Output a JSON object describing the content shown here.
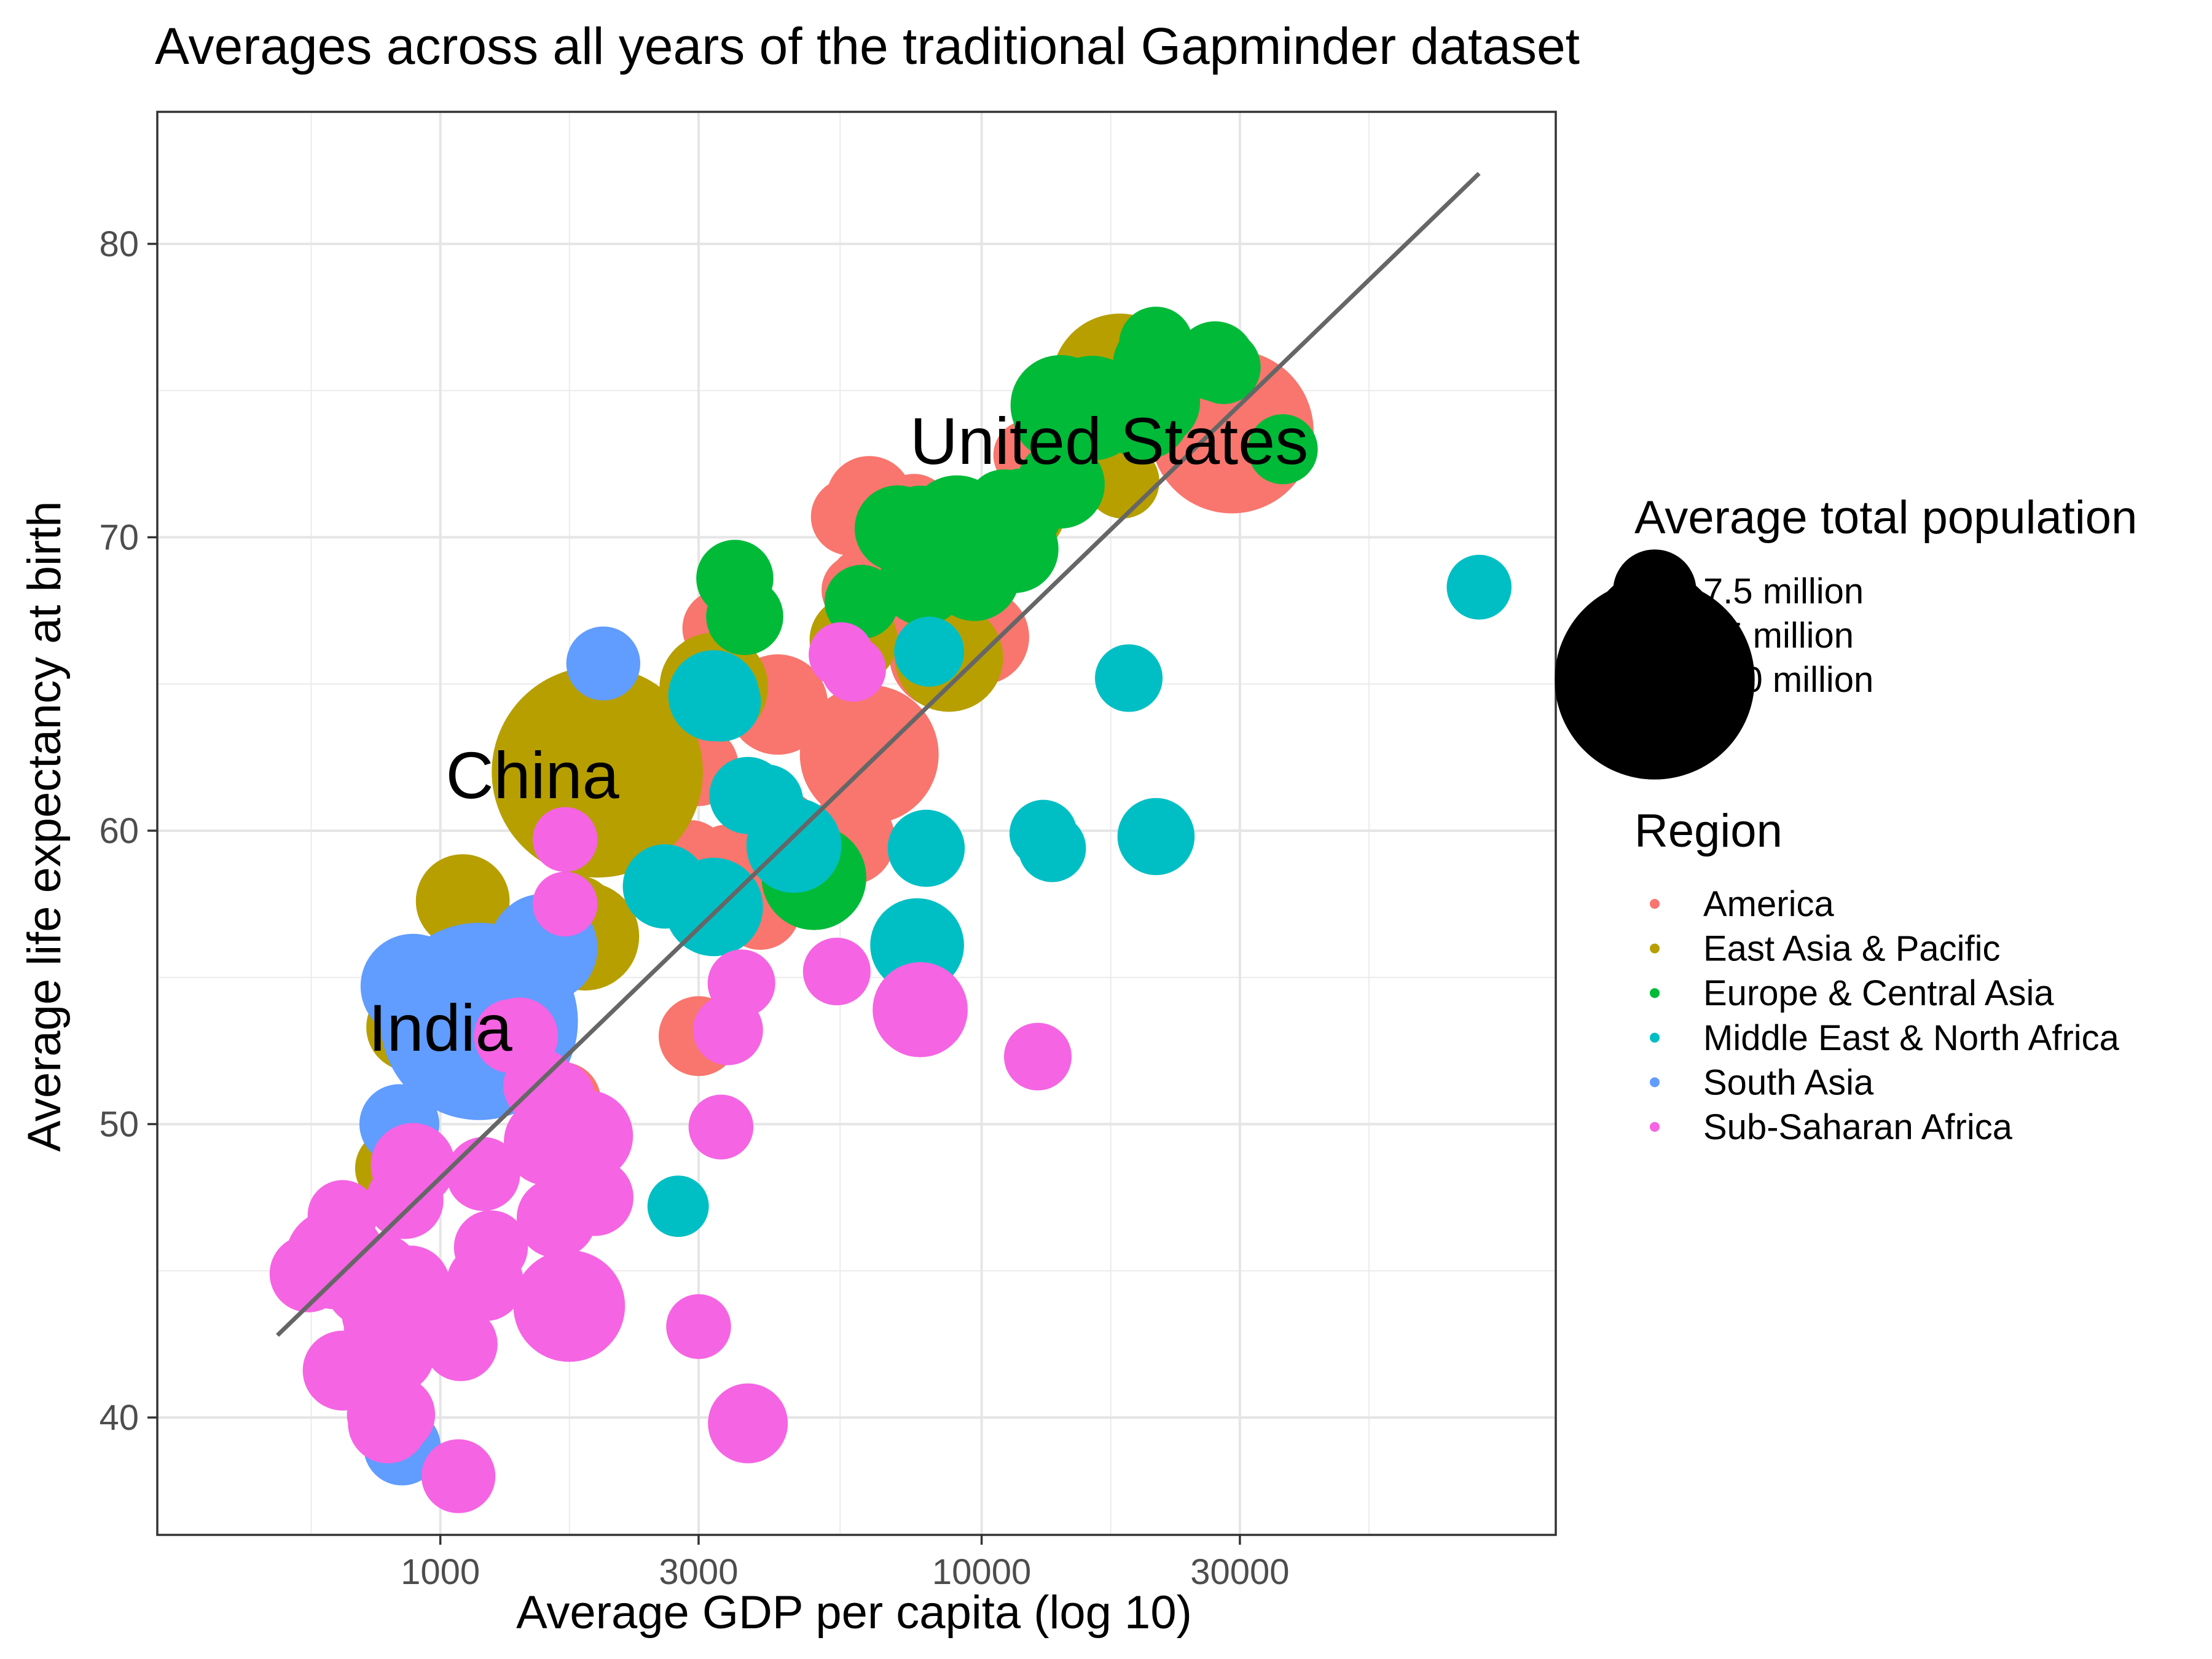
{
  "chart_data": {
    "type": "scatter",
    "title": "Averages across all years of the traditional Gapminder dataset",
    "xlabel": "Average GDP per capita (log 10)",
    "ylabel": "Average life expectancy at birth",
    "x_scale": "log10",
    "xlim": [
      300,
      115000
    ],
    "ylim": [
      36,
      84.5
    ],
    "x_ticks": [
      1000,
      3000,
      10000,
      30000
    ],
    "x_tick_labels": [
      "1000",
      "3000",
      "10000",
      "30000"
    ],
    "y_ticks": [
      40,
      50,
      60,
      70,
      80
    ],
    "y_tick_labels": [
      "40",
      "50",
      "60",
      "70",
      "80"
    ],
    "grid": true,
    "size_legend": {
      "title": "Average total population",
      "entries": [
        {
          "label": "7.5 million",
          "value": 7500000
        },
        {
          "label": "75 million",
          "value": 75000000
        },
        {
          "label": "750 million",
          "value": 750000000
        }
      ]
    },
    "color_legend": {
      "title": "Region",
      "placement": "right",
      "entries": [
        {
          "name": "America",
          "color": "#F8766D"
        },
        {
          "name": "East Asia & Pacific",
          "color": "#B79F00"
        },
        {
          "name": "Europe & Central Asia",
          "color": "#00BA38"
        },
        {
          "name": "Middle East & North Africa",
          "color": "#00BFC4"
        },
        {
          "name": "South Asia",
          "color": "#619CFF"
        },
        {
          "name": "Sub-Saharan Africa",
          "color": "#F564E3"
        }
      ]
    },
    "trend_line": {
      "x": [
        500,
        83000
      ],
      "y": [
        42.8,
        82.4
      ],
      "color": "#666666"
    },
    "labels": [
      {
        "text": "United States",
        "x": 17200,
        "y": 73.3
      },
      {
        "text": "China",
        "x": 1480,
        "y": 61.9
      },
      {
        "text": "India",
        "x": 1000,
        "y": 53.3
      }
    ],
    "series": [
      {
        "name": "America",
        "points": [
          [
            29000,
            73.6,
            260000000
          ],
          [
            23000,
            75.2,
            25000000
          ],
          [
            18000,
            75.3,
            8000000
          ],
          [
            20000,
            74.5,
            9000000
          ],
          [
            17000,
            74.4,
            7000000
          ],
          [
            12200,
            72.8,
            3000000
          ],
          [
            6200,
            71.3,
            9000000
          ],
          [
            5700,
            70.7,
            5000000
          ],
          [
            7500,
            70.9,
            4000000
          ],
          [
            9700,
            69.3,
            25000000
          ],
          [
            6800,
            67.9,
            6000000
          ],
          [
            6100,
            68.4,
            4000000
          ],
          [
            5900,
            68.2,
            3500000
          ],
          [
            8000,
            66.2,
            8000000
          ],
          [
            10000,
            66.6,
            15000000
          ],
          [
            8500,
            66.0,
            30000000
          ],
          [
            6200,
            62.6,
            110000000
          ],
          [
            5900,
            63.3,
            6000000
          ],
          [
            4200,
            64.3,
            20000000
          ],
          [
            3300,
            66.9,
            5000000
          ],
          [
            3000,
            62.2,
            6000000
          ],
          [
            5700,
            59.7,
            12000000
          ],
          [
            4300,
            60.1,
            4000000
          ],
          [
            3400,
            58.9,
            5000000
          ],
          [
            2900,
            59.1,
            4000000
          ],
          [
            3900,
            57.3,
            6000000
          ],
          [
            3000,
            53.0,
            6000000
          ],
          [
            1680,
            50.8,
            5000000
          ]
        ]
      },
      {
        "name": "East Asia & Pacific",
        "points": [
          [
            18000,
            75.3,
            100000000
          ],
          [
            20200,
            75.0,
            5000000
          ],
          [
            18200,
            71.9,
            4000000
          ],
          [
            12100,
            70.8,
            5000000
          ],
          [
            8700,
            65.9,
            30000000
          ],
          [
            5800,
            66.5,
            10000000
          ],
          [
            3200,
            64.9,
            30000000
          ],
          [
            2300,
            63.5,
            6000000
          ],
          [
            2400,
            62.7,
            14000000
          ],
          [
            1950,
            62.0,
            1000000000
          ],
          [
            1100,
            57.6,
            14000000
          ],
          [
            1850,
            56.4,
            30000000
          ],
          [
            1800,
            57.2,
            4000000
          ],
          [
            880,
            53.3,
            10000000
          ],
          [
            1270,
            51.9,
            5000000
          ],
          [
            820,
            48.5,
            5000000
          ]
        ]
      },
      {
        "name": "Europe & Central Asia",
        "points": [
          [
            21000,
            76.6,
            4000000
          ],
          [
            21000,
            76.3,
            4000000
          ],
          [
            27000,
            76.0,
            6000000
          ],
          [
            28000,
            75.8,
            4000000
          ],
          [
            21000,
            75.9,
            9000000
          ],
          [
            20000,
            74.8,
            14000000
          ],
          [
            21000,
            74.6,
            10000000
          ],
          [
            20000,
            74.2,
            12000000
          ],
          [
            16000,
            74.4,
            25000000
          ],
          [
            14000,
            74.5,
            20000000
          ],
          [
            13700,
            74.1,
            8000000
          ],
          [
            14100,
            74.0,
            6000000
          ],
          [
            36000,
            73.0,
            3000000
          ],
          [
            14500,
            73.5,
            5000000
          ],
          [
            14000,
            71.8,
            10000000
          ],
          [
            9000,
            70.4,
            20000000
          ],
          [
            9700,
            70.4,
            4000000
          ],
          [
            11800,
            70.9,
            8000000
          ],
          [
            11000,
            71.0,
            5000000
          ],
          [
            7700,
            70.5,
            4000000
          ],
          [
            7000,
            70.3,
            9000000
          ],
          [
            11500,
            69.6,
            10000000
          ],
          [
            9700,
            68.7,
            12000000
          ],
          [
            7800,
            68.5,
            10000000
          ],
          [
            6000,
            67.8,
            4000000
          ],
          [
            3500,
            68.6,
            5000000
          ],
          [
            3650,
            67.3,
            5000000
          ],
          [
            4900,
            58.4,
            25000000
          ]
        ]
      },
      {
        "name": "Middle East & North Africa",
        "points": [
          [
            83000,
            68.3,
            2000000
          ],
          [
            18700,
            65.2,
            2500000
          ],
          [
            8000,
            66.1,
            3000000
          ],
          [
            3200,
            64.6,
            12000000
          ],
          [
            3300,
            64.4,
            6000000
          ],
          [
            3700,
            61.2,
            5000000
          ],
          [
            4000,
            61.0,
            4000000
          ],
          [
            4500,
            59.5,
            15000000
          ],
          [
            7900,
            59.4,
            5000000
          ],
          [
            13000,
            59.9,
            2500000
          ],
          [
            13500,
            59.4,
            2500000
          ],
          [
            21000,
            59.8,
            5000000
          ],
          [
            2600,
            58.1,
            8000000
          ],
          [
            3200,
            57.4,
            18000000
          ],
          [
            7600,
            56.1,
            14000000
          ],
          [
            1700,
            49.3,
            6000000
          ],
          [
            2750,
            47.2,
            1500000
          ]
        ]
      },
      {
        "name": "South Asia",
        "points": [
          [
            2000,
            65.7,
            4000000
          ],
          [
            1550,
            56.0,
            30000000
          ],
          [
            890,
            54.7,
            25000000
          ],
          [
            1180,
            53.5,
            700000000
          ],
          [
            1170,
            52.9,
            30000000
          ],
          [
            840,
            50.0,
            6000000
          ],
          [
            850,
            39.0,
            5000000
          ]
        ]
      },
      {
        "name": "Sub-Saharan Africa",
        "points": [
          [
            5500,
            66.0,
            2000000
          ],
          [
            5800,
            65.5,
            2000000
          ],
          [
            1700,
            59.7,
            2000000
          ],
          [
            1700,
            57.5,
            2000000
          ],
          [
            5400,
            55.2,
            2500000
          ],
          [
            3600,
            54.8,
            2500000
          ],
          [
            7700,
            53.9,
            15000000
          ],
          [
            3400,
            53.2,
            3000000
          ],
          [
            1400,
            53.0,
            5000000
          ],
          [
            1350,
            53.0,
            4000000
          ],
          [
            1530,
            51.3,
            4000000
          ],
          [
            12700,
            52.3,
            2500000
          ],
          [
            1650,
            50.9,
            4000000
          ],
          [
            3300,
            49.9,
            2000000
          ],
          [
            1580,
            49.4,
            10000000
          ],
          [
            1870,
            49.6,
            12000000
          ],
          [
            890,
            48.6,
            8000000
          ],
          [
            1200,
            48.3,
            4000000
          ],
          [
            1780,
            47.6,
            5000000
          ],
          [
            1820,
            47.8,
            5000000
          ],
          [
            1880,
            47.7,
            5000000
          ],
          [
            1930,
            47.5,
            5000000
          ],
          [
            860,
            47.4,
            5000000
          ],
          [
            1640,
            46.8,
            6000000
          ],
          [
            660,
            46.9,
            3000000
          ],
          [
            1240,
            45.8,
            4000000
          ],
          [
            570,
            44.9,
            5000000
          ],
          [
            640,
            45.4,
            20000000
          ],
          [
            740,
            44.6,
            12000000
          ],
          [
            880,
            44.5,
            6000000
          ],
          [
            1210,
            44.6,
            5000000
          ],
          [
            1730,
            43.8,
            35000000
          ],
          [
            780,
            45.0,
            4000000
          ],
          [
            770,
            43.5,
            4000000
          ],
          [
            980,
            43.4,
            4000000
          ],
          [
            1090,
            42.5,
            4000000
          ],
          [
            770,
            43.0,
            3000000
          ],
          [
            820,
            42.2,
            7000000
          ],
          [
            660,
            41.6,
            6000000
          ],
          [
            3000,
            43.1,
            2000000
          ],
          [
            780,
            40.1,
            3000000
          ],
          [
            830,
            40.1,
            5000000
          ],
          [
            800,
            39.8,
            6000000
          ],
          [
            1080,
            38.0,
            4000000
          ],
          [
            3700,
            39.8,
            6000000
          ]
        ]
      }
    ]
  }
}
